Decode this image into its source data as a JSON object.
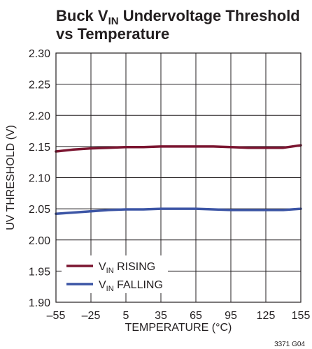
{
  "chart_data": {
    "type": "line",
    "title": {
      "line1_main": "Buck V",
      "line1_sub": "IN",
      "line1_rest": " Undervoltage Threshold",
      "line2": "vs Temperature"
    },
    "xlabel": "TEMPERATURE (°C)",
    "ylabel": "UV THRESHOLD (V)",
    "xlim": [
      -55,
      155
    ],
    "ylim": [
      1.9,
      2.3
    ],
    "x_ticks": [
      -55,
      -25,
      5,
      35,
      65,
      95,
      125,
      155
    ],
    "x_tick_labels": [
      "–55",
      "–25",
      "5",
      "35",
      "65",
      "95",
      "125",
      "155"
    ],
    "y_ticks": [
      1.9,
      1.95,
      2.0,
      2.05,
      2.1,
      2.15,
      2.2,
      2.25,
      2.3
    ],
    "y_tick_labels": [
      "1.90",
      "1.95",
      "2.00",
      "2.05",
      "2.10",
      "2.15",
      "2.20",
      "2.25",
      "2.30"
    ],
    "grid": true,
    "legend_position": "bottom-left",
    "series": [
      {
        "name_main": "V",
        "name_sub": "IN",
        "name_rest": " RISING",
        "color": "#7b1530",
        "x": [
          -55,
          -40,
          -25,
          -10,
          5,
          20,
          35,
          50,
          65,
          80,
          95,
          110,
          125,
          140,
          155
        ],
        "y": [
          2.142,
          2.145,
          2.147,
          2.148,
          2.149,
          2.149,
          2.15,
          2.15,
          2.15,
          2.15,
          2.149,
          2.148,
          2.148,
          2.148,
          2.152
        ]
      },
      {
        "name_main": "V",
        "name_sub": "IN",
        "name_rest": " FALLING",
        "color": "#3c55a5",
        "x": [
          -55,
          -40,
          -25,
          -10,
          5,
          20,
          35,
          50,
          65,
          80,
          95,
          110,
          125,
          140,
          155
        ],
        "y": [
          2.042,
          2.044,
          2.046,
          2.048,
          2.049,
          2.049,
          2.05,
          2.05,
          2.05,
          2.049,
          2.048,
          2.048,
          2.048,
          2.048,
          2.05
        ]
      }
    ],
    "note": "3371 G04"
  }
}
